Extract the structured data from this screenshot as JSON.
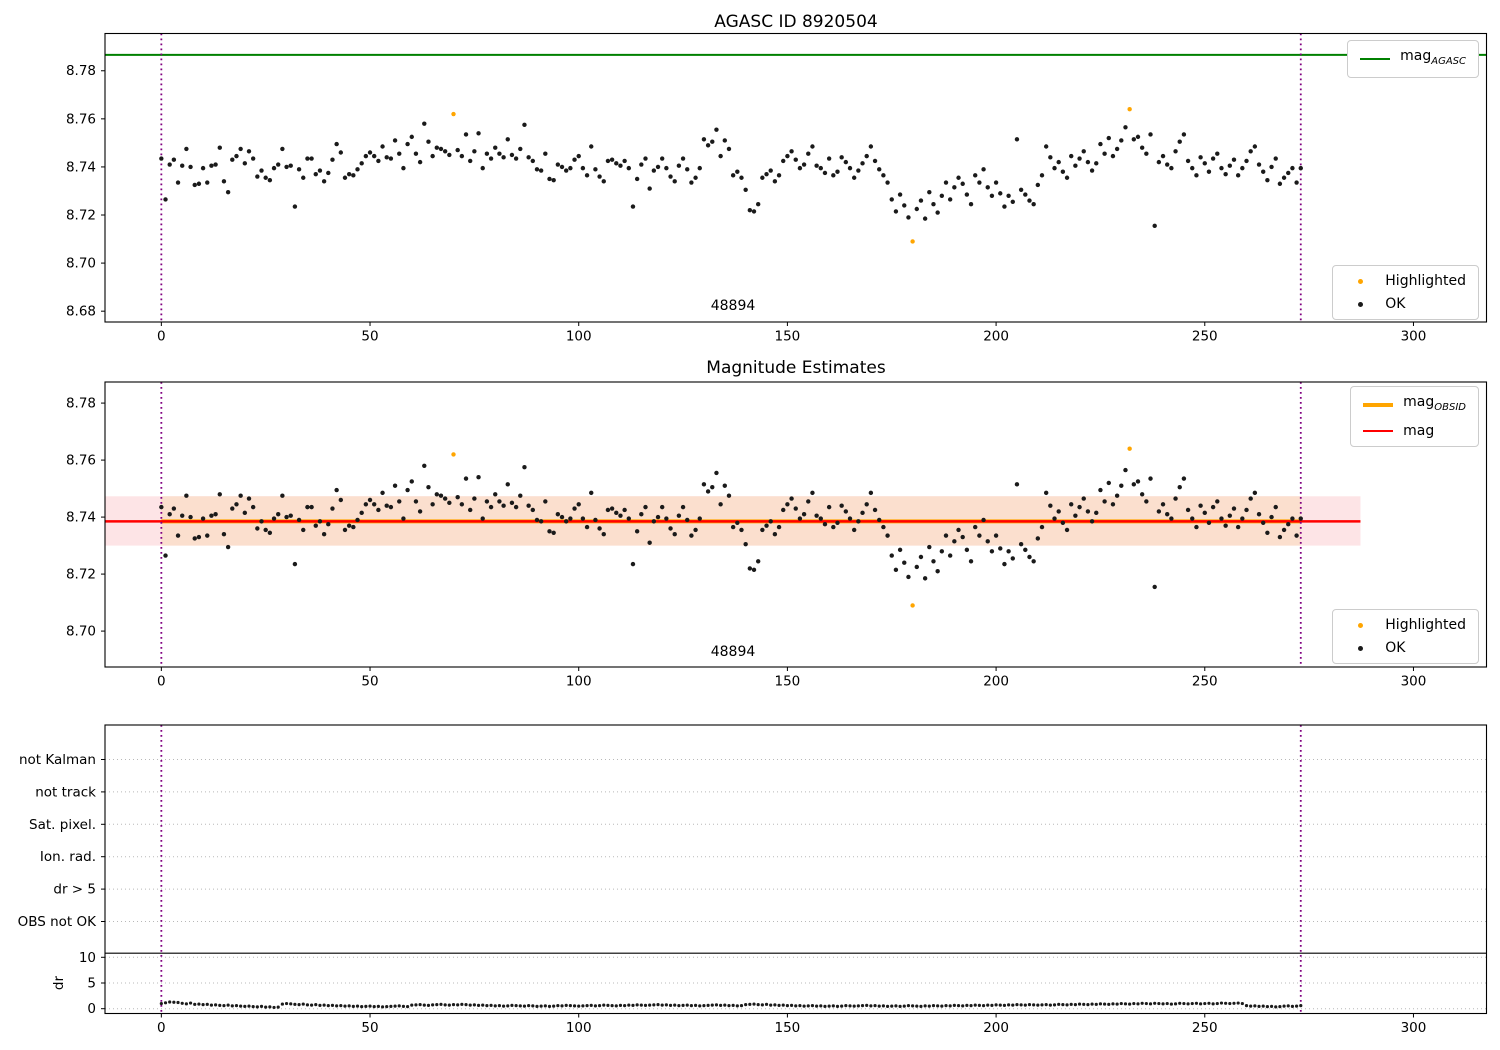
{
  "figure": {
    "background": "#ffffff"
  },
  "colors": {
    "mag_agasc_line": "#008000",
    "mag_line": "#ff0000",
    "obsid_line": "#ffa500",
    "highlighted_point": "#ffa500",
    "ok_point": "#1a1a1a",
    "vline": "#800080",
    "band_pink": "#fde4e6",
    "band_peach": "#fbdfce",
    "grid": "#b8b8b8",
    "spine": "#000000"
  },
  "titles": {
    "top": "AGASC ID 8920504",
    "middle": "Magnitude Estimates"
  },
  "annotations": {
    "obsid_top": "48894",
    "obsid_middle": "48894"
  },
  "legends": {
    "mag_agasc": {
      "label": "mag",
      "sub": "AGASC"
    },
    "mag_obsid": {
      "label": "mag",
      "sub": "OBSID"
    },
    "mag": {
      "label": "mag"
    },
    "highlighted": "Highlighted",
    "ok": "OK"
  },
  "chart_data": {
    "type": "scatter",
    "x_start": 0,
    "x_step": 1,
    "n_points": 274,
    "highlighted_indices": [
      70,
      180,
      232
    ],
    "mag_y": [
      8.7435,
      8.7265,
      8.741,
      8.743,
      8.7335,
      8.7405,
      8.7475,
      8.74,
      8.7325,
      8.733,
      8.7395,
      8.7335,
      8.7405,
      8.741,
      8.748,
      8.734,
      8.7295,
      8.743,
      8.7445,
      8.7475,
      8.7415,
      8.7465,
      8.7435,
      8.736,
      8.7385,
      8.7355,
      8.7345,
      8.7395,
      8.741,
      8.7475,
      8.74,
      8.7405,
      8.7235,
      8.739,
      8.7355,
      8.7435,
      8.7435,
      8.737,
      8.7385,
      8.734,
      8.7375,
      8.743,
      8.7495,
      8.746,
      8.7355,
      8.737,
      8.7365,
      8.739,
      8.7415,
      8.7445,
      8.746,
      8.7445,
      8.7425,
      8.7485,
      8.744,
      8.7435,
      8.751,
      8.7455,
      8.7395,
      8.7495,
      8.7525,
      8.7455,
      8.742,
      8.758,
      8.7505,
      8.7445,
      8.748,
      8.7475,
      8.7465,
      8.745,
      8.762,
      8.747,
      8.7445,
      8.7535,
      8.7425,
      8.7465,
      8.754,
      8.7395,
      8.7455,
      8.7435,
      8.748,
      8.7455,
      8.744,
      8.7515,
      8.745,
      8.7435,
      8.7475,
      8.7575,
      8.744,
      8.7425,
      8.739,
      8.7385,
      8.7455,
      8.735,
      8.7345,
      8.741,
      8.74,
      8.7385,
      8.7395,
      8.743,
      8.7445,
      8.7395,
      8.7365,
      8.7485,
      8.739,
      8.736,
      8.734,
      8.7425,
      8.743,
      8.7415,
      8.7405,
      8.7425,
      8.7395,
      8.7235,
      8.735,
      8.741,
      8.7435,
      8.731,
      8.7385,
      8.74,
      8.7435,
      8.7395,
      8.736,
      8.734,
      8.7405,
      8.7435,
      8.739,
      8.7335,
      8.7355,
      8.7395,
      8.7515,
      8.749,
      8.7505,
      8.7555,
      8.7445,
      8.751,
      8.7475,
      8.7365,
      8.738,
      8.7355,
      8.7305,
      8.722,
      8.7215,
      8.7245,
      8.7355,
      8.737,
      8.7385,
      8.734,
      8.7365,
      8.7425,
      8.7445,
      8.7465,
      8.743,
      8.7395,
      8.741,
      8.7455,
      8.7485,
      8.7405,
      8.7395,
      8.7375,
      8.7435,
      8.7365,
      8.738,
      8.744,
      8.742,
      8.7395,
      8.7355,
      8.7385,
      8.7415,
      8.7445,
      8.7485,
      8.7425,
      8.739,
      8.7365,
      8.7335,
      8.7265,
      8.7215,
      8.7285,
      8.724,
      8.719,
      8.709,
      8.7225,
      8.726,
      8.7185,
      8.7295,
      8.7245,
      8.721,
      8.728,
      8.7335,
      8.7265,
      8.7315,
      8.7355,
      8.733,
      8.7285,
      8.7245,
      8.7365,
      8.7335,
      8.739,
      8.7315,
      8.728,
      8.7335,
      8.729,
      8.7235,
      8.728,
      8.7255,
      8.7515,
      8.7305,
      8.7285,
      8.726,
      8.7245,
      8.7325,
      8.7365,
      8.7485,
      8.744,
      8.7395,
      8.742,
      8.738,
      8.7355,
      8.7445,
      8.7405,
      8.7435,
      8.7465,
      8.742,
      8.7385,
      8.7415,
      8.7495,
      8.7455,
      8.752,
      8.7445,
      8.7475,
      8.751,
      8.7565,
      8.764,
      8.7515,
      8.7525,
      8.748,
      8.7455,
      8.7535,
      8.7155,
      8.742,
      8.7445,
      8.741,
      8.7395,
      8.7465,
      8.7505,
      8.7535,
      8.7425,
      8.7395,
      8.7365,
      8.744,
      8.7415,
      8.738,
      8.7435,
      8.7455,
      8.7395,
      8.737,
      8.7405,
      8.743,
      8.7365,
      8.7395,
      8.7425,
      8.7465,
      8.7485,
      8.741,
      8.738,
      8.7345,
      8.74,
      8.7435,
      8.733,
      8.7355,
      8.7375,
      8.7395,
      8.7335,
      8.7395
    ],
    "dr_y": [
      1.0,
      1.15,
      1.3,
      1.25,
      1.2,
      1.05,
      0.95,
      1.1,
      0.85,
      0.9,
      0.8,
      0.85,
      0.7,
      0.75,
      0.65,
      0.6,
      0.7,
      0.55,
      0.6,
      0.5,
      0.45,
      0.5,
      0.4,
      0.35,
      0.45,
      0.3,
      0.35,
      0.25,
      0.3,
      0.9,
      1.0,
      0.95,
      0.85,
      0.8,
      0.9,
      0.75,
      0.7,
      0.8,
      0.65,
      0.7,
      0.6,
      0.65,
      0.55,
      0.6,
      0.5,
      0.55,
      0.45,
      0.5,
      0.4,
      0.45,
      0.5,
      0.4,
      0.45,
      0.35,
      0.4,
      0.45,
      0.5,
      0.55,
      0.45,
      0.4,
      0.7,
      0.75,
      0.8,
      0.7,
      0.65,
      0.75,
      0.8,
      0.85,
      0.75,
      0.7,
      0.8,
      0.75,
      0.85,
      0.8,
      0.7,
      0.75,
      0.65,
      0.7,
      0.6,
      0.65,
      0.55,
      0.6,
      0.5,
      0.55,
      0.65,
      0.6,
      0.55,
      0.5,
      0.6,
      0.55,
      0.45,
      0.5,
      0.55,
      0.45,
      0.5,
      0.6,
      0.55,
      0.65,
      0.6,
      0.55,
      0.5,
      0.55,
      0.6,
      0.65,
      0.55,
      0.6,
      0.7,
      0.65,
      0.6,
      0.55,
      0.65,
      0.6,
      0.7,
      0.65,
      0.75,
      0.7,
      0.65,
      0.7,
      0.75,
      0.8,
      0.7,
      0.75,
      0.65,
      0.7,
      0.6,
      0.65,
      0.7,
      0.6,
      0.65,
      0.55,
      0.6,
      0.65,
      0.7,
      0.75,
      0.65,
      0.7,
      0.6,
      0.65,
      0.55,
      0.6,
      0.8,
      0.85,
      0.9,
      0.8,
      0.75,
      0.85,
      0.7,
      0.75,
      0.65,
      0.7,
      0.6,
      0.65,
      0.55,
      0.6,
      0.5,
      0.55,
      0.6,
      0.5,
      0.55,
      0.45,
      0.5,
      0.55,
      0.45,
      0.5,
      0.6,
      0.55,
      0.5,
      0.55,
      0.6,
      0.65,
      0.55,
      0.6,
      0.5,
      0.55,
      0.45,
      0.5,
      0.55,
      0.45,
      0.5,
      0.6,
      0.55,
      0.5,
      0.45,
      0.55,
      0.5,
      0.6,
      0.55,
      0.5,
      0.6,
      0.55,
      0.65,
      0.6,
      0.55,
      0.65,
      0.6,
      0.7,
      0.65,
      0.6,
      0.7,
      0.65,
      0.75,
      0.7,
      0.65,
      0.75,
      0.7,
      0.8,
      0.75,
      0.7,
      0.8,
      0.75,
      0.7,
      0.75,
      0.8,
      0.7,
      0.75,
      0.85,
      0.8,
      0.75,
      0.85,
      0.8,
      0.9,
      0.85,
      0.8,
      0.9,
      0.85,
      0.95,
      0.9,
      0.85,
      0.95,
      0.9,
      1.0,
      0.95,
      0.9,
      1.0,
      0.95,
      1.05,
      1.0,
      0.95,
      1.05,
      1.0,
      0.95,
      1.0,
      0.9,
      0.95,
      1.05,
      1.0,
      0.95,
      1.0,
      1.05,
      0.95,
      1.0,
      1.05,
      0.95,
      1.0,
      1.1,
      1.05,
      1.0,
      1.05,
      1.1,
      1.0,
      0.6,
      0.5,
      0.55,
      0.45,
      0.5,
      0.4,
      0.45,
      0.35,
      0.4,
      0.5,
      0.55,
      0.45,
      0.5,
      0.6
    ],
    "panels": [
      {
        "id": "top",
        "title": "AGASC ID 8920504",
        "xlim": [
          -13.5,
          317.5
        ],
        "ylim": [
          8.6755,
          8.7955
        ],
        "xticks": [
          0,
          50,
          100,
          150,
          200,
          250,
          300
        ],
        "yticks": [
          8.68,
          8.7,
          8.72,
          8.74,
          8.76,
          8.78
        ],
        "mag_agasc_hline": 8.7866,
        "vlines": [
          0,
          273
        ],
        "annotation": {
          "text": "48894",
          "x": 136.5,
          "y": 8.688
        }
      },
      {
        "id": "middle",
        "title": "Magnitude Estimates",
        "xlim": [
          -13.5,
          317.5
        ],
        "ylim": [
          8.6874,
          8.7874
        ],
        "xticks": [
          0,
          50,
          100,
          150,
          200,
          250,
          300
        ],
        "yticks": [
          8.7,
          8.72,
          8.74,
          8.76,
          8.78
        ],
        "mag_line": 8.7385,
        "mag_line_x": [
          -13.5,
          287.3
        ],
        "mag_err_band": [
          8.73,
          8.7473
        ],
        "obsid_line": 8.7385,
        "obsid_band_x": [
          0,
          273
        ],
        "vlines": [
          0,
          273
        ],
        "annotation": {
          "text": "48894",
          "x": 136.5,
          "y": 8.692
        }
      },
      {
        "id": "flags",
        "categories": [
          "not Kalman",
          "not track",
          "Sat. pixel.",
          "Ion. rad.",
          "dr > 5",
          "OBS not OK"
        ],
        "dr_ticks": [
          10,
          5,
          0
        ],
        "dr_axis_label": "dr",
        "dr_hline": 10.8,
        "xticks": [
          0,
          50,
          100,
          150,
          200,
          250,
          300
        ],
        "vlines": [
          0,
          273
        ]
      }
    ]
  }
}
